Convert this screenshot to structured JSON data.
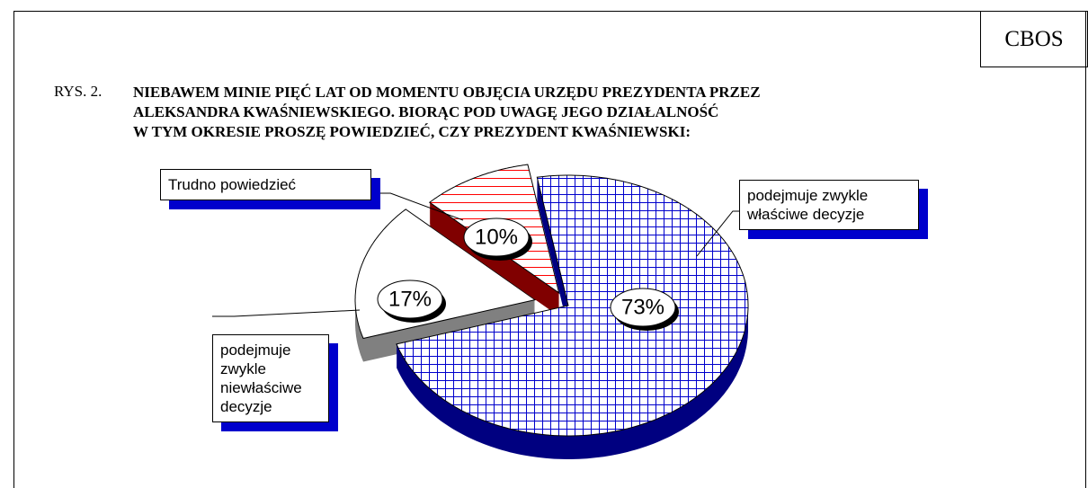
{
  "header": {
    "source": "CBOS",
    "figure": "RYS. 2."
  },
  "chart_data": {
    "type": "pie",
    "title": [
      "NIEBAWEM MINIE PIĘĆ LAT OD MOMENTU OBJĘCIA URZĘDU PREZYDENTA PRZEZ",
      "ALEKSANDRA KWAŚNIEWSKIEGO. BIORĄC POD UWAGĘ JEGO DZIAŁALNOŚĆ",
      "W TYM OKRESIE PROSZĘ POWIEDZIEĆ, CZY PREZYDENT KWAŚNIEWSKI:"
    ],
    "categories": [
      "podejmuje zwykle właściwe decyzje",
      "Trudno powiedzieć",
      "podejmuje zwykle niewłaściwe decyzje"
    ],
    "values": [
      73,
      17,
      10
    ],
    "value_labels": [
      "73%",
      "17%",
      "10%"
    ],
    "colors": [
      "#0000cc",
      "#ffffff",
      "#ff0000"
    ]
  }
}
